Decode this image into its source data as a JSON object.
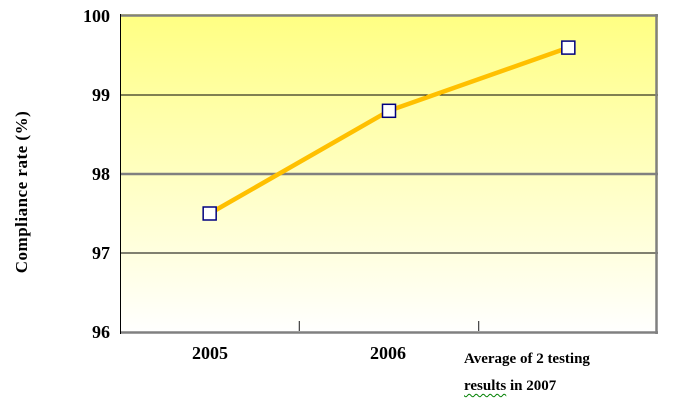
{
  "chart_data": {
    "type": "line",
    "title": "",
    "categories": [
      "2005",
      "2006",
      "Average of 2 testing results in 2007"
    ],
    "values": [
      97.5,
      98.8,
      99.6
    ],
    "xlabel": "",
    "ylabel": "Compliance rate (%)",
    "ylim": [
      96,
      100
    ],
    "yticks": [
      96,
      97,
      98,
      99,
      100
    ],
    "major_gridlines": [
      96,
      98,
      100
    ],
    "minor_gridlines": [
      97,
      99
    ],
    "grid": "on",
    "legend": "none",
    "line_color": "#FFC000",
    "marker_shape": "square",
    "marker_fill": "#FFFFFF",
    "marker_border_color": "#000080",
    "plot_bg_gradient_top": "#FFFF82",
    "plot_bg_gradient_bottom": "#FFFFFF",
    "major_grid_color": "#808080",
    "minor_grid_color": "#000000",
    "axis_line_color": "#000000",
    "tick_color": "#404040",
    "category3_lines": [
      "Average of 2 testing",
      "results in 2007"
    ],
    "category3_line2_word": "results",
    "category3_line2_rest": " in 2007",
    "spellcheck_underline_color": "#008000"
  }
}
